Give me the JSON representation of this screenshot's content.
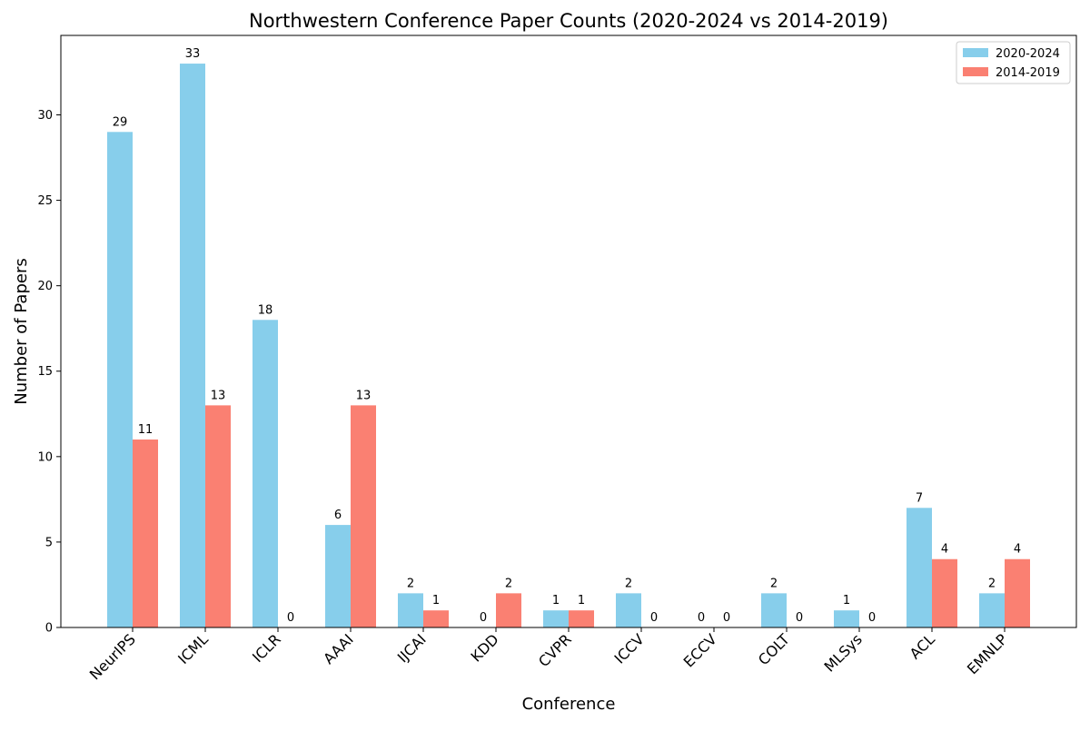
{
  "chart_data": {
    "type": "bar",
    "title": "Northwestern Conference Paper Counts (2020-2024 vs 2014-2019)",
    "xlabel": "Conference",
    "ylabel": "Number of Papers",
    "categories": [
      "NeurIPS",
      "ICML",
      "ICLR",
      "AAAI",
      "IJCAI",
      "KDD",
      "CVPR",
      "ICCV",
      "ECCV",
      "COLT",
      "MLSys",
      "ACL",
      "EMNLP"
    ],
    "series": [
      {
        "name": "2020-2024",
        "color": "#87ceeb",
        "values": [
          29,
          33,
          18,
          6,
          2,
          0,
          1,
          2,
          0,
          2,
          1,
          7,
          2
        ]
      },
      {
        "name": "2014-2019",
        "color": "#fa8072",
        "values": [
          11,
          13,
          0,
          13,
          1,
          2,
          1,
          0,
          0,
          0,
          0,
          4,
          4
        ]
      }
    ],
    "ylim": [
      0,
      34.65
    ],
    "yticks": [
      0,
      5,
      10,
      15,
      20,
      25,
      30
    ],
    "grid": false,
    "legend_position": "top-right"
  }
}
